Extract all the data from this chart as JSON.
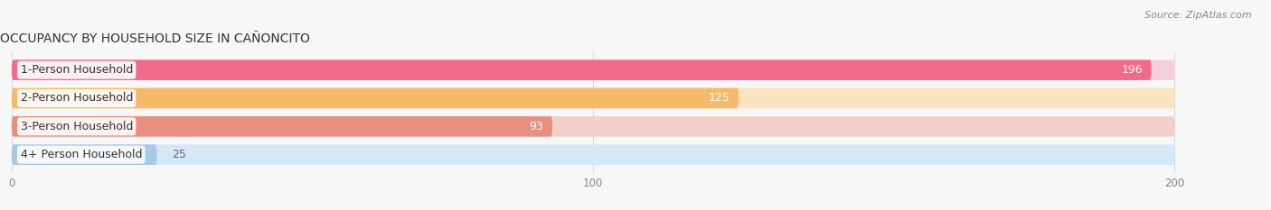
{
  "title": "OCCUPANCY BY HOUSEHOLD SIZE IN CAÑONCITO",
  "source": "Source: ZipAtlas.com",
  "categories": [
    "1-Person Household",
    "2-Person Household",
    "3-Person Household",
    "4+ Person Household"
  ],
  "values": [
    196,
    125,
    93,
    25
  ],
  "bar_colors": [
    "#F26B8A",
    "#F5B96A",
    "#E89080",
    "#A8C8E8"
  ],
  "bar_bg_colors": [
    "#F5D0DA",
    "#FAE3C0",
    "#F0D0C8",
    "#D5E8F5"
  ],
  "label_colors_inside": [
    "#ffffff",
    "#ffffff",
    "#ffffff",
    "#ffffff"
  ],
  "label_colors_outside": [
    "#777777",
    "#777777",
    "#777777",
    "#777777"
  ],
  "xlim": [
    -2,
    210
  ],
  "xmin": 0,
  "xmax": 200,
  "xticks": [
    0,
    100,
    200
  ],
  "title_fontsize": 10,
  "source_fontsize": 8,
  "bar_label_fontsize": 9,
  "category_fontsize": 9,
  "background_color": "#f7f7f7",
  "white": "#ffffff",
  "grid_color": "#d8d8d8"
}
